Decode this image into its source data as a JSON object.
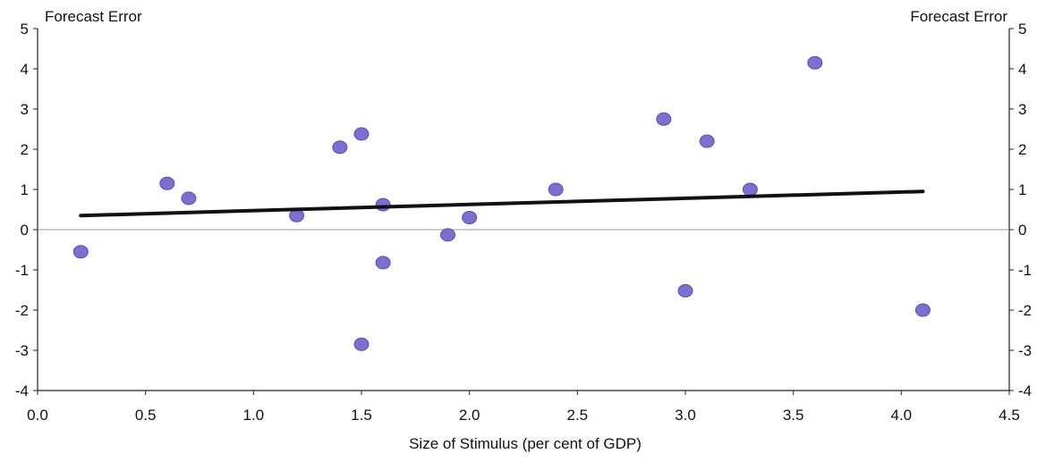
{
  "chart_data": {
    "type": "scatter",
    "title_left": "Forecast Error",
    "title_right": "Forecast Error",
    "xlabel": "Size of Stimulus (per cent of GDP)",
    "xlim": [
      0.0,
      4.5
    ],
    "ylim": [
      -4,
      5
    ],
    "x_ticks": [
      "0.0",
      "0.5",
      "1.0",
      "1.5",
      "2.0",
      "2.5",
      "3.0",
      "3.5",
      "4.0",
      "4.5"
    ],
    "y_ticks": [
      "5",
      "4",
      "3",
      "2",
      "1",
      "0",
      "-1",
      "-2",
      "-3",
      "-4"
    ],
    "colors": {
      "point": "#7b6fd0",
      "point_edge": "#5a4fb0",
      "fit_line": "#111111",
      "zero_line": "#999999"
    },
    "points": [
      {
        "x": 0.2,
        "y": -0.55
      },
      {
        "x": 0.6,
        "y": 1.15
      },
      {
        "x": 0.7,
        "y": 0.78
      },
      {
        "x": 1.2,
        "y": 0.35
      },
      {
        "x": 1.4,
        "y": 2.05
      },
      {
        "x": 1.5,
        "y": 2.38
      },
      {
        "x": 1.5,
        "y": -2.85
      },
      {
        "x": 1.6,
        "y": 0.62
      },
      {
        "x": 1.6,
        "y": -0.82
      },
      {
        "x": 1.9,
        "y": -0.13
      },
      {
        "x": 2.0,
        "y": 0.3
      },
      {
        "x": 2.4,
        "y": 1.0
      },
      {
        "x": 2.9,
        "y": 2.75
      },
      {
        "x": 3.0,
        "y": -1.52
      },
      {
        "x": 3.1,
        "y": 2.2
      },
      {
        "x": 3.3,
        "y": 1.0
      },
      {
        "x": 3.6,
        "y": 4.15
      },
      {
        "x": 4.1,
        "y": -2.0
      }
    ],
    "trend_line": {
      "x": [
        0.2,
        4.1
      ],
      "y": [
        0.35,
        0.95
      ]
    }
  }
}
